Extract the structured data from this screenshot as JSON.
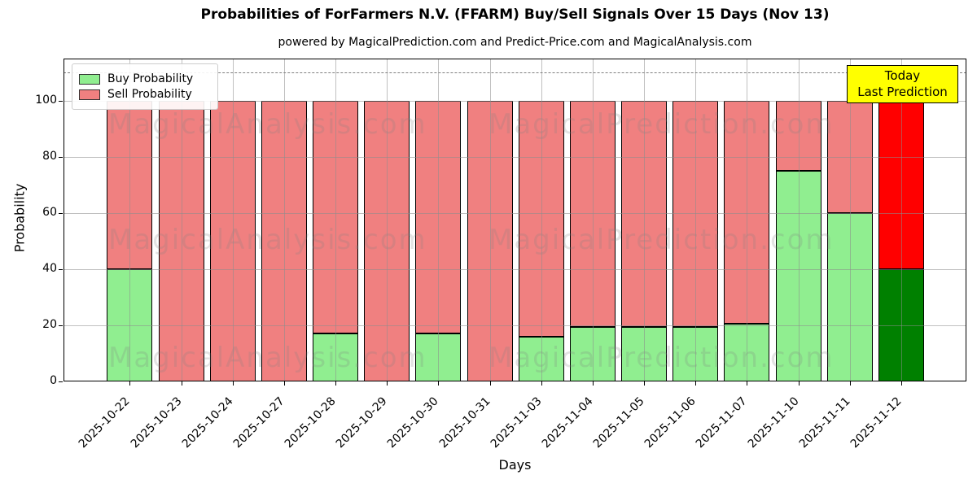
{
  "title": "Probabilities of ForFarmers N.V. (FFARM) Buy/Sell Signals Over 15 Days (Nov 13)",
  "subtitle": "powered by MagicalPrediction.com and Predict-Price.com and MagicalAnalysis.com",
  "watermarks": {
    "left_text": "MagicalAnalysis.com",
    "right_text": "MagicalPrediction.com"
  },
  "legend": {
    "items": [
      {
        "label": "Buy Probability",
        "color": "#90ee90"
      },
      {
        "label": "Sell Probability",
        "color": "#f08080"
      }
    ]
  },
  "today_box": {
    "line1": "Today",
    "line2": "Last Prediction",
    "bg_color": "#ffff00"
  },
  "axes": {
    "x_label": "Days",
    "y_label": "Probability",
    "y_ticks": [
      0,
      20,
      40,
      60,
      80,
      100
    ]
  },
  "chart_data": {
    "type": "bar",
    "stacked": true,
    "title": "Probabilities of ForFarmers N.V. (FFARM) Buy/Sell Signals Over 15 Days (Nov 13)",
    "xlabel": "Days",
    "ylabel": "Probability",
    "ylim": [
      0,
      115
    ],
    "grid": true,
    "legend_position": "upper left",
    "dashed_reference_line_y": 110,
    "categories": [
      "2025-10-22",
      "2025-10-23",
      "2025-10-24",
      "2025-10-27",
      "2025-10-28",
      "2025-10-29",
      "2025-10-30",
      "2025-10-31",
      "2025-11-03",
      "2025-11-04",
      "2025-11-05",
      "2025-11-06",
      "2025-11-07",
      "2025-11-10",
      "2025-11-11",
      "2025-11-12"
    ],
    "series": [
      {
        "name": "Buy Probability",
        "values": [
          40,
          0,
          0,
          0,
          17,
          0,
          17,
          0,
          16,
          19.5,
          19.5,
          19.5,
          20.5,
          75,
          60,
          40
        ]
      },
      {
        "name": "Sell Probability",
        "values": [
          60,
          100,
          100,
          100,
          83,
          100,
          83,
          100,
          84,
          80.5,
          80.5,
          80.5,
          79.5,
          25,
          40,
          60
        ]
      }
    ],
    "colors": {
      "buy": "#90ee90",
      "sell": "#f08080",
      "today_buy": "#008000",
      "today_sell": "#ff0000",
      "bar_edge": "#000000"
    },
    "today_index": 15
  }
}
